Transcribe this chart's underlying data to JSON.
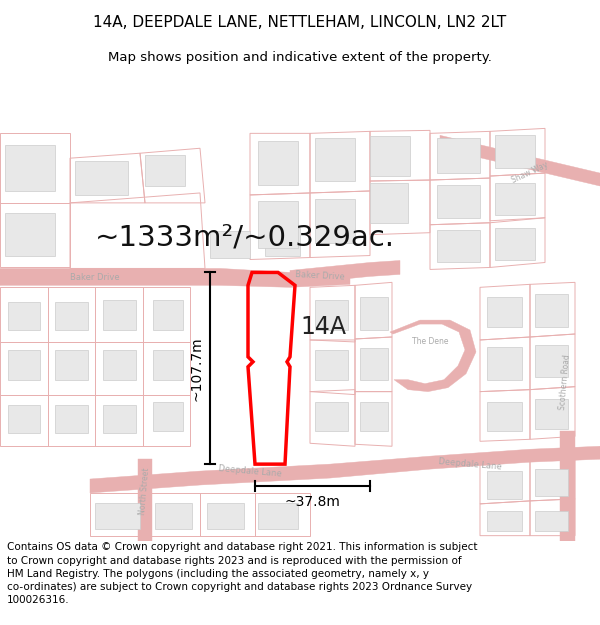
{
  "title_line1": "14A, DEEPDALE LANE, NETTLEHAM, LINCOLN, LN2 2LT",
  "title_line2": "Map shows position and indicative extent of the property.",
  "area_text": "~1333m²/~0.329ac.",
  "label_14A": "14A",
  "dim_height": "~107.7m",
  "dim_width": "~37.8m",
  "footer_text": "Contains OS data © Crown copyright and database right 2021. This information is subject to Crown copyright and database rights 2023 and is reproduced with the permission of HM Land Registry. The polygons (including the associated geometry, namely x, y co-ordinates) are subject to Crown copyright and database rights 2023 Ordnance Survey 100026316.",
  "bg_color": "#ffffff",
  "map_bg": "#ffffff",
  "road_stroke": "#e8b0b0",
  "building_fill": "#e8e8e8",
  "building_stroke": "#d0a0a0",
  "plot_stroke": "#e8b0b0",
  "highlight_color": "#ff0000",
  "road_label_color": "#aaaaaa",
  "title_fontsize": 11,
  "subtitle_fontsize": 9.5,
  "area_fontsize": 21,
  "label_fontsize": 17,
  "dim_fontsize": 10,
  "footer_fontsize": 7.5
}
